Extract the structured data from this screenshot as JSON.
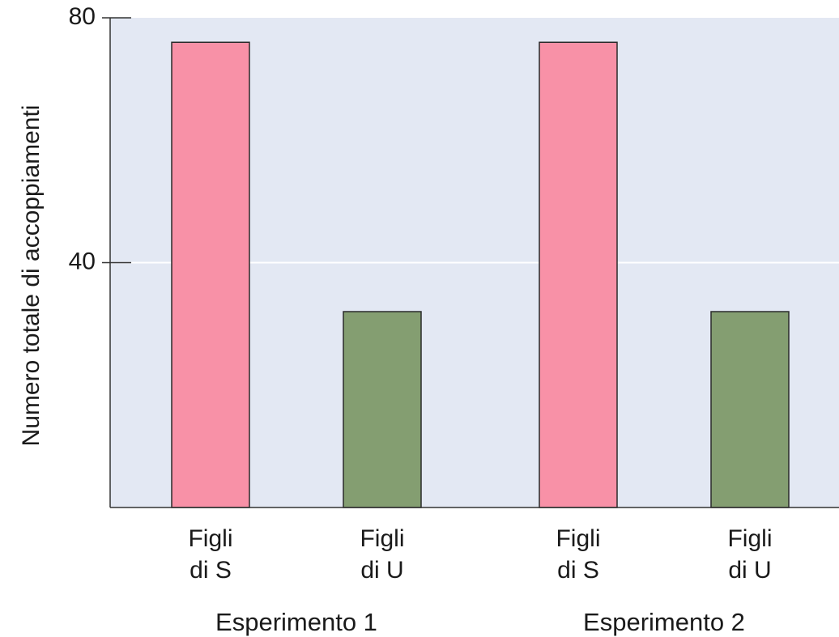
{
  "chart_data": {
    "type": "bar",
    "title": "",
    "xlabel": "",
    "ylabel": "Numero totale di accoppiamenti",
    "ylim": [
      0,
      80
    ],
    "yticks": [
      40,
      80
    ],
    "grid": "horizontal line at 40",
    "background_color": "#e3e8f3",
    "groups": [
      {
        "label": "Esperimento 1",
        "bars": [
          {
            "label_line1": "Figli",
            "label_line2": "di S",
            "value": 76,
            "color": "#f891a7"
          },
          {
            "label_line1": "Figli",
            "label_line2": "di U",
            "value": 32,
            "color": "#849e71"
          }
        ]
      },
      {
        "label": "Esperimento 2",
        "bars": [
          {
            "label_line1": "Figli",
            "label_line2": "di S",
            "value": 76,
            "color": "#f891a7"
          },
          {
            "label_line1": "Figli",
            "label_line2": "di U",
            "value": 32,
            "color": "#849e71"
          }
        ]
      }
    ]
  }
}
